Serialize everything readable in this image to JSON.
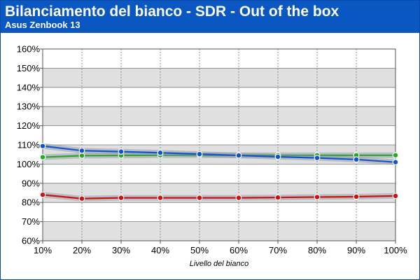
{
  "header": {
    "title": "Bilanciamento del bianco - SDR - Out of the box",
    "subtitle": "Asus Zenbook 13"
  },
  "colors": {
    "header_bg": "#0a57c2",
    "band_dark": "#e0e0e0",
    "band_light": "#ffffff",
    "red": "#cc1111",
    "green": "#22aa22",
    "blue": "#1155cc"
  },
  "chart_data": {
    "type": "line",
    "title": "Bilanciamento del bianco - SDR - Out of the box",
    "subtitle": "Asus Zenbook 13",
    "xlabel": "Livello del bianco",
    "ylabel": "",
    "categories": [
      "10%",
      "20%",
      "30%",
      "40%",
      "50%",
      "60%",
      "70%",
      "80%",
      "90%",
      "100%"
    ],
    "yticks": [
      "60%",
      "70%",
      "80%",
      "90%",
      "100%",
      "110%",
      "120%",
      "130%",
      "140%",
      "150%",
      "160%"
    ],
    "ylim": [
      60,
      160
    ],
    "grid": true,
    "legend": "none",
    "series": [
      {
        "color": "#cc1111",
        "values": [
          84.0,
          82.0,
          82.4,
          82.4,
          82.4,
          82.4,
          82.6,
          82.8,
          83.0,
          83.4
        ]
      },
      {
        "color": "#22aa22",
        "values": [
          103.6,
          104.4,
          104.5,
          104.6,
          104.6,
          104.6,
          104.6,
          104.6,
          104.6,
          104.6
        ]
      },
      {
        "color": "#1155cc",
        "values": [
          109.4,
          107.0,
          106.5,
          105.9,
          105.2,
          104.5,
          103.8,
          103.2,
          102.4,
          101.0
        ]
      }
    ]
  }
}
